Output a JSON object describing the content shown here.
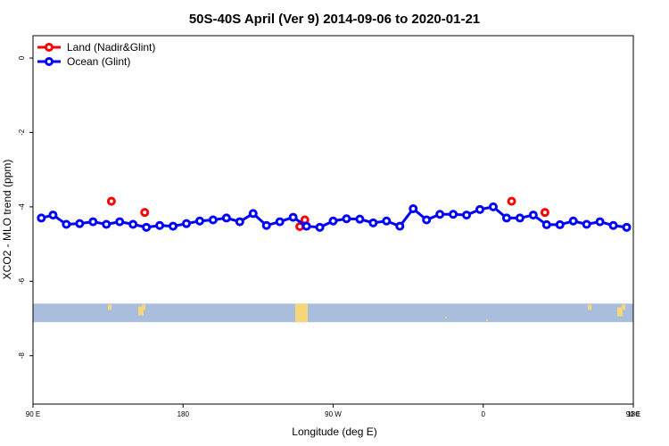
{
  "chart_data": {
    "type": "line",
    "title": "50S-40S April (Ver 9)   2014-09-06 to 2020-01-21",
    "xlabel": "Longitude (deg E)",
    "ylabel": "XCO2 - MLO trend (ppm)",
    "xlim": [
      90,
      450
    ],
    "ylim": [
      -9.3,
      0.6
    ],
    "x_ticks": [
      {
        "value": 90,
        "label": "90 E"
      },
      {
        "value": 180,
        "label": "180"
      },
      {
        "value": 270,
        "label": "90 W"
      },
      {
        "value": 360,
        "label": "0"
      },
      {
        "value": 450,
        "label": "90 E"
      },
      {
        "value": 540,
        "label": "180"
      }
    ],
    "y_ticks": [
      {
        "value": 0,
        "label": "0"
      },
      {
        "value": -2,
        "label": "-2"
      },
      {
        "value": -4,
        "label": "-4"
      },
      {
        "value": -6,
        "label": "-6"
      },
      {
        "value": -8,
        "label": "-8"
      }
    ],
    "grid": false,
    "legend_position": "top-left",
    "series": [
      {
        "name": "Land (Nadir&Glint)",
        "color": "#ff0000",
        "style": "points",
        "x": [
          137,
          157,
          250,
          253,
          377,
          397
        ],
        "y": [
          -3.85,
          -4.15,
          -4.53,
          -4.35,
          -3.85,
          -4.15
        ]
      },
      {
        "name": "Ocean (Glint)",
        "color": "#0000ff",
        "style": "line+points",
        "x": [
          95,
          102,
          110,
          118,
          126,
          134,
          142,
          150,
          158,
          166,
          174,
          182,
          190,
          198,
          206,
          214,
          222,
          230,
          238,
          246,
          254,
          262,
          270,
          278,
          286,
          294,
          302,
          310,
          318,
          326,
          334,
          342,
          350,
          358,
          366,
          374,
          382,
          390,
          398,
          406,
          414,
          422,
          430,
          438,
          446
        ],
        "y": [
          -4.3,
          -4.22,
          -4.47,
          -4.45,
          -4.4,
          -4.47,
          -4.4,
          -4.47,
          -4.55,
          -4.5,
          -4.52,
          -4.45,
          -4.38,
          -4.35,
          -4.3,
          -4.4,
          -4.18,
          -4.5,
          -4.4,
          -4.28,
          -4.52,
          -4.55,
          -4.38,
          -4.32,
          -4.33,
          -4.43,
          -4.38,
          -4.52,
          -4.05,
          -4.35,
          -4.2,
          -4.2,
          -4.22,
          -4.07,
          -4.0,
          -4.3,
          -4.3,
          -4.22,
          -4.48,
          -4.48,
          -4.38,
          -4.47,
          -4.4,
          -4.5,
          -4.55
        ]
      }
    ],
    "map_strip": {
      "y_top": -6.6,
      "y_bottom": -7.1,
      "ocean_color": "#a9bedd",
      "land_color": "#f5d77a"
    }
  }
}
